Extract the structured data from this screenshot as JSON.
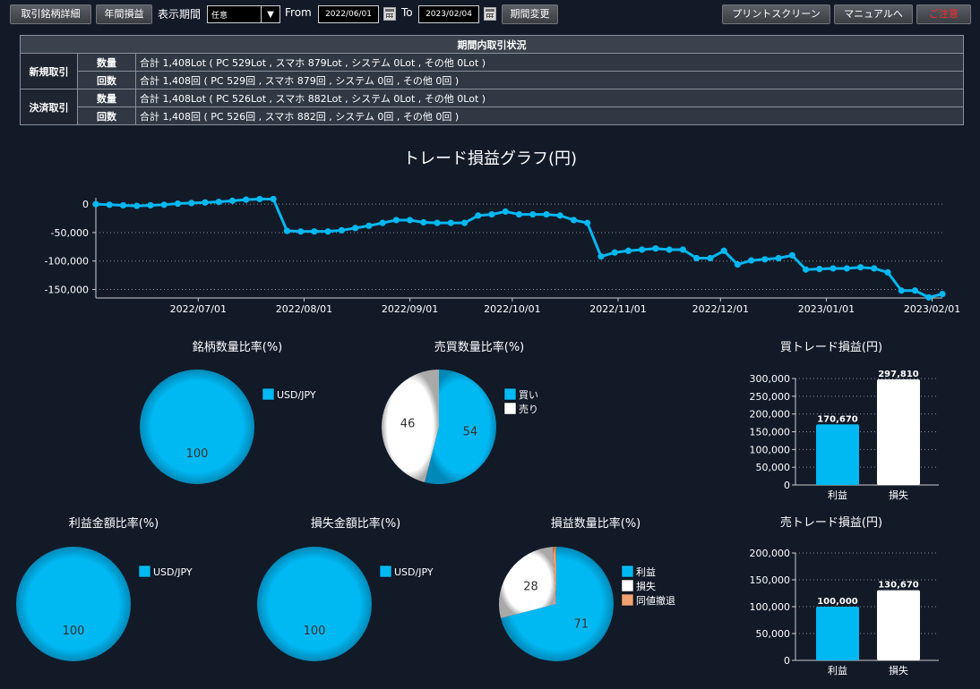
{
  "toolbar": {
    "detail_btn": "取引銘柄詳細",
    "annual_btn": "年間損益",
    "period_label": "表示期間",
    "period_value": "任意",
    "from_label": "From",
    "from_date": "2022/06/01",
    "to_label": "To",
    "to_date": "2023/02/04",
    "change_btn": "期間変更",
    "print_btn": "プリントスクリーン",
    "manual_btn": "マニュアルへ",
    "notice_btn": "ご注意"
  },
  "stats_table": {
    "title": "期間内取引状況",
    "rows": [
      {
        "group": "新規取引",
        "sub": "数量",
        "text": "合計 1,408Lot ( PC 529Lot , スマホ 879Lot , システム 0Lot , その他 0Lot )"
      },
      {
        "group": "",
        "sub": "回数",
        "text": "合計 1,408回 ( PC 529回 , スマホ 879回 , システム 0回 , その他 0回 )"
      },
      {
        "group": "決済取引",
        "sub": "数量",
        "text": "合計 1,408Lot ( PC 526Lot , スマホ 882Lot , システム 0Lot , その他 0Lot )"
      },
      {
        "group": "",
        "sub": "回数",
        "text": "合計 1,408回 ( PC 526回 , スマホ 882回 , システム 0回 , その他 0回 )"
      }
    ]
  },
  "colors": {
    "cyan": "#00b8f2",
    "white": "#ffffff",
    "orange": "#f0a070",
    "bg": "#121a28"
  },
  "chart_data": [
    {
      "id": "pl-line",
      "type": "line",
      "title": "トレード損益グラフ(円)",
      "x_start": "2022/06/01",
      "x_end": "2023/02/04",
      "x_ticks": [
        "2022/07/01",
        "2022/08/01",
        "2022/09/01",
        "2022/10/01",
        "2022/11/01",
        "2022/12/01",
        "2023/01/01",
        "2023/02/01"
      ],
      "y_ticks": [
        "0",
        "-50,000",
        "-100,000",
        "-150,000"
      ],
      "y_tick_values": [
        0,
        -50000,
        -100000,
        -150000
      ],
      "ylim": [
        -165000,
        5000
      ],
      "grid": true,
      "x": [
        "2022/06/01",
        "2022/06/05",
        "2022/06/09",
        "2022/06/13",
        "2022/06/17",
        "2022/06/21",
        "2022/06/25",
        "2022/06/29",
        "2022/07/03",
        "2022/07/07",
        "2022/07/11",
        "2022/07/15",
        "2022/07/19",
        "2022/07/23",
        "2022/07/27",
        "2022/07/31",
        "2022/08/04",
        "2022/08/08",
        "2022/08/12",
        "2022/08/16",
        "2022/08/20",
        "2022/08/24",
        "2022/08/28",
        "2022/09/01",
        "2022/09/05",
        "2022/09/09",
        "2022/09/13",
        "2022/09/17",
        "2022/09/21",
        "2022/09/25",
        "2022/09/29",
        "2022/10/03",
        "2022/10/07",
        "2022/10/11",
        "2022/10/15",
        "2022/10/19",
        "2022/10/23",
        "2022/10/27",
        "2022/10/31",
        "2022/11/04",
        "2022/11/08",
        "2022/11/12",
        "2022/11/16",
        "2022/11/20",
        "2022/11/24",
        "2022/11/28",
        "2022/12/02",
        "2022/12/06",
        "2022/12/10",
        "2022/12/14",
        "2022/12/18",
        "2022/12/22",
        "2022/12/26",
        "2022/12/30",
        "2023/01/03",
        "2023/01/07",
        "2023/01/11",
        "2023/01/15",
        "2023/01/19",
        "2023/01/23",
        "2023/01/27",
        "2023/01/31",
        "2023/02/04"
      ],
      "values": [
        0,
        -1000,
        -2000,
        -3000,
        -2000,
        -1000,
        1000,
        2000,
        3000,
        4000,
        6000,
        8000,
        9000,
        9000,
        -47000,
        -48000,
        -48000,
        -48000,
        -46000,
        -42000,
        -38000,
        -33000,
        -28000,
        -28000,
        -32000,
        -33000,
        -33000,
        -33000,
        -20000,
        -18000,
        -13000,
        -18000,
        -18000,
        -18000,
        -20000,
        -28000,
        -33000,
        -92000,
        -85000,
        -82000,
        -80000,
        -78000,
        -80000,
        -80000,
        -95000,
        -95000,
        -82000,
        -106000,
        -99000,
        -97000,
        -95000,
        -90000,
        -115000,
        -114000,
        -113000,
        -113000,
        -111000,
        -113000,
        -120000,
        -152000,
        -152000,
        -164000,
        -158000
      ]
    },
    {
      "id": "pie-brand",
      "type": "pie",
      "title": "銘柄数量比率(%)",
      "labels": [
        "USD/JPY"
      ],
      "values": [
        100
      ],
      "colors": [
        "#00b8f2"
      ],
      "legend": "right"
    },
    {
      "id": "pie-side",
      "type": "pie",
      "title": "売買数量比率(%)",
      "labels": [
        "買い",
        "売り"
      ],
      "values": [
        54,
        46
      ],
      "colors": [
        "#00b8f2",
        "#ffffff"
      ],
      "legend": "right"
    },
    {
      "id": "bar-buy",
      "type": "bar",
      "title": "買トレード損益(円)",
      "categories": [
        "利益",
        "損失"
      ],
      "values": [
        170670,
        297810
      ],
      "value_labels": [
        "170,670",
        "297,810"
      ],
      "colors": [
        "#00b8f2",
        "#ffffff"
      ],
      "y_ticks": [
        "0",
        "50,000",
        "100,000",
        "150,000",
        "200,000",
        "250,000",
        "300,000"
      ],
      "ylim": [
        0,
        300000
      ]
    },
    {
      "id": "pie-profit",
      "type": "pie",
      "title": "利益金額比率(%)",
      "labels": [
        "USD/JPY"
      ],
      "values": [
        100
      ],
      "colors": [
        "#00b8f2"
      ],
      "legend": "right"
    },
    {
      "id": "pie-loss",
      "type": "pie",
      "title": "損失金額比率(%)",
      "labels": [
        "USD/JPY"
      ],
      "values": [
        100
      ],
      "colors": [
        "#00b8f2"
      ],
      "legend": "right"
    },
    {
      "id": "pie-pl-count",
      "type": "pie",
      "title": "損益数量比率(%)",
      "labels": [
        "利益",
        "損失",
        "同値撤退"
      ],
      "values": [
        71,
        28,
        1
      ],
      "value_labels": [
        "71",
        "28",
        ""
      ],
      "colors": [
        "#00b8f2",
        "#ffffff",
        "#f0a070"
      ],
      "legend": "right"
    },
    {
      "id": "bar-sell",
      "type": "bar",
      "title": "売トレード損益(円)",
      "categories": [
        "利益",
        "損失"
      ],
      "values": [
        100000,
        130670
      ],
      "value_labels": [
        "100,000",
        "130,670"
      ],
      "colors": [
        "#00b8f2",
        "#ffffff"
      ],
      "y_ticks": [
        "0",
        "50,000",
        "100,000",
        "150,000",
        "200,000"
      ],
      "ylim": [
        0,
        200000
      ]
    }
  ]
}
